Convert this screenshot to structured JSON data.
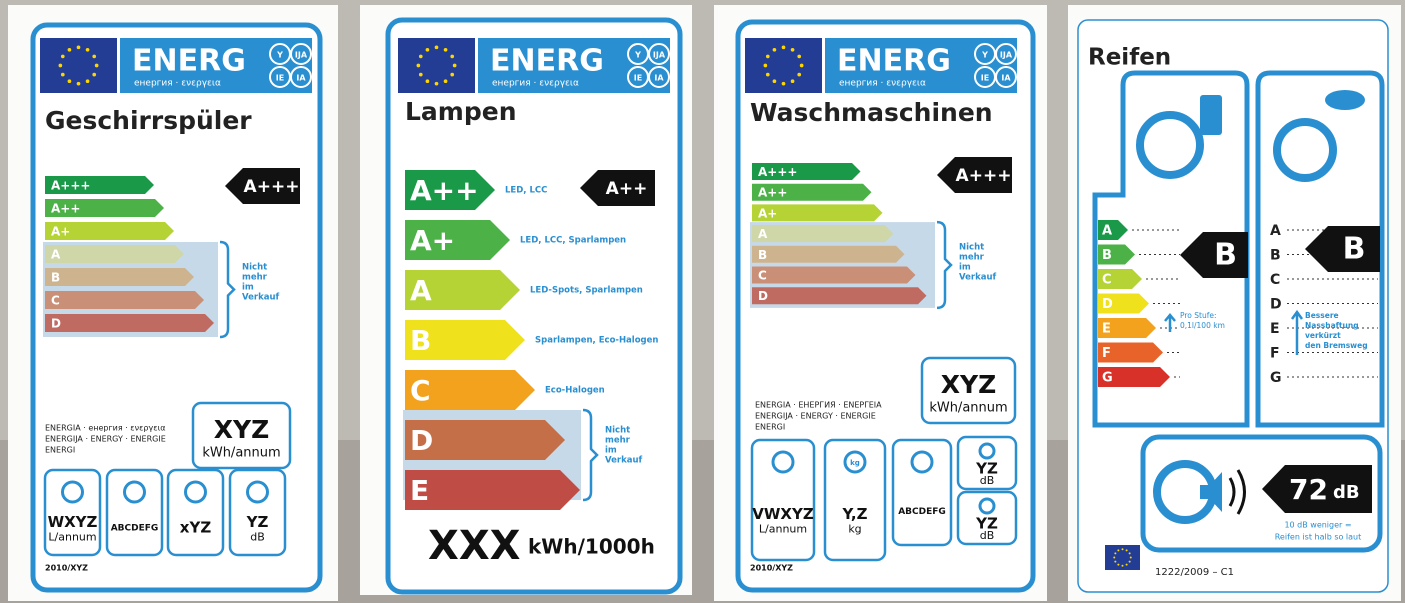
{
  "labels": [
    {
      "header": {
        "word": "ENERG",
        "sub": "енергия · ενεργεια",
        "badges": [
          "Y",
          "IJA",
          "IE",
          "IA"
        ]
      },
      "title": "Geschirrspüler",
      "classes": [
        "A+++",
        "A++",
        "A+",
        "A",
        "B",
        "C",
        "D"
      ],
      "rating": "A+++",
      "note": [
        "Nicht",
        "mehr",
        "im",
        "Verkauf"
      ],
      "languages": [
        "ENERGIA · енергия · ενεργεια",
        "ENERGIJA · ENERGY · ENERGIE",
        "ENERGI"
      ],
      "consumption": {
        "value": "XYZ",
        "unit": "kWh/annum"
      },
      "icons": [
        {
          "value": "WXYZ",
          "unit": "L/annum"
        },
        {
          "value": "ABCDEFG"
        },
        {
          "value": "xYZ"
        },
        {
          "value": "YZ",
          "unit": "dB"
        }
      ],
      "footer": "2010/XYZ"
    },
    {
      "header": {
        "word": "ENERG",
        "sub": "енергия · ενεργεια",
        "badges": [
          "Y",
          "IJA",
          "IE",
          "IA"
        ]
      },
      "title": "Lampen",
      "classes": [
        "A++",
        "A+",
        "A",
        "B",
        "C",
        "D",
        "E"
      ],
      "descriptions": [
        "LED, LCC",
        "LED, LCC, Sparlampen",
        "LED-Spots, Sparlampen",
        "Sparlampen, Eco-Halogen",
        "Eco-Halogen"
      ],
      "rating": "A++",
      "note": [
        "Nicht",
        "mehr",
        "im",
        "Verkauf"
      ],
      "consumption": {
        "value": "XXX",
        "unit": "kWh/1000h"
      }
    },
    {
      "header": {
        "word": "ENERG",
        "sub": "енергия · ενεργεια",
        "badges": [
          "Y",
          "IJA",
          "IE",
          "IA"
        ]
      },
      "title": "Waschmaschinen",
      "classes": [
        "A+++",
        "A++",
        "A+",
        "A",
        "B",
        "C",
        "D"
      ],
      "rating": "A+++",
      "note": [
        "Nicht",
        "mehr",
        "im",
        "Verkauf"
      ],
      "languages": [
        "ENERGIA · ЕНЕРГИЯ · ΕΝΕΡΓΕΙΑ",
        "ENERGIJA · ENERGY · ENERGIE",
        "ENERGI"
      ],
      "consumption": {
        "value": "XYZ",
        "unit": "kWh/annum"
      },
      "icons": [
        {
          "value": "VWXYZ",
          "unit": "L/annum"
        },
        {
          "value": "Y,Z",
          "unit": "kg",
          "badge": "kg"
        },
        {
          "value": "ABCDEFG"
        },
        {
          "value": "YZ",
          "unit": "dB"
        },
        {
          "value": "YZ",
          "unit": "dB"
        }
      ],
      "footer": "2010/XYZ"
    },
    {
      "title": "Reifen",
      "classes": [
        "A",
        "B",
        "C",
        "D",
        "E",
        "F",
        "G"
      ],
      "fuel_rating": "B",
      "wet_rating": "B",
      "fuel_note": [
        "Pro Stufe:",
        "0,1l/100 km"
      ],
      "wet_note": [
        "Bessere",
        "Nasshaftung",
        "verkürzt",
        "den Bremsweg"
      ],
      "noise": {
        "value": "72",
        "unit": "dB"
      },
      "noise_note": [
        "10 dB weniger =",
        "Reifen ist halb so laut"
      ],
      "footer": "1222/2009 – C1"
    }
  ]
}
